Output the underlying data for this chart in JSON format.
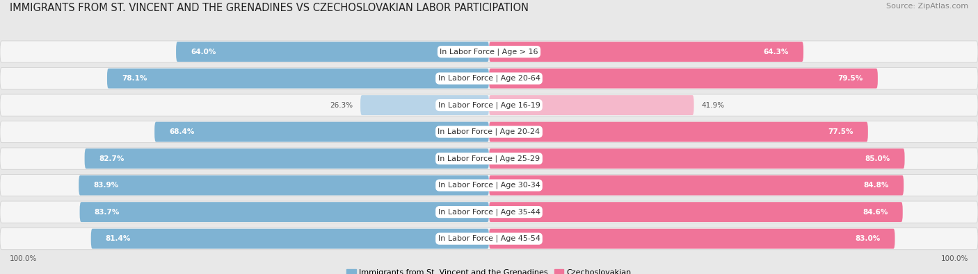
{
  "title": "IMMIGRANTS FROM ST. VINCENT AND THE GRENADINES VS CZECHOSLOVAKIAN LABOR PARTICIPATION",
  "source": "Source: ZipAtlas.com",
  "categories": [
    "In Labor Force | Age > 16",
    "In Labor Force | Age 20-64",
    "In Labor Force | Age 16-19",
    "In Labor Force | Age 20-24",
    "In Labor Force | Age 25-29",
    "In Labor Force | Age 30-34",
    "In Labor Force | Age 35-44",
    "In Labor Force | Age 45-54"
  ],
  "left_values": [
    64.0,
    78.1,
    26.3,
    68.4,
    82.7,
    83.9,
    83.7,
    81.4
  ],
  "right_values": [
    64.3,
    79.5,
    41.9,
    77.5,
    85.0,
    84.8,
    84.6,
    83.0
  ],
  "left_color": "#7fb3d3",
  "right_color": "#f07499",
  "left_color_light": "#b8d4e8",
  "right_color_light": "#f5b8cb",
  "left_label": "Immigrants from St. Vincent and the Grenadines",
  "right_label": "Czechoslovakian",
  "background_color": "#e8e8e8",
  "max_value": 100.0,
  "title_fontsize": 10.5,
  "source_fontsize": 8,
  "label_fontsize": 8,
  "value_fontsize": 7.5
}
